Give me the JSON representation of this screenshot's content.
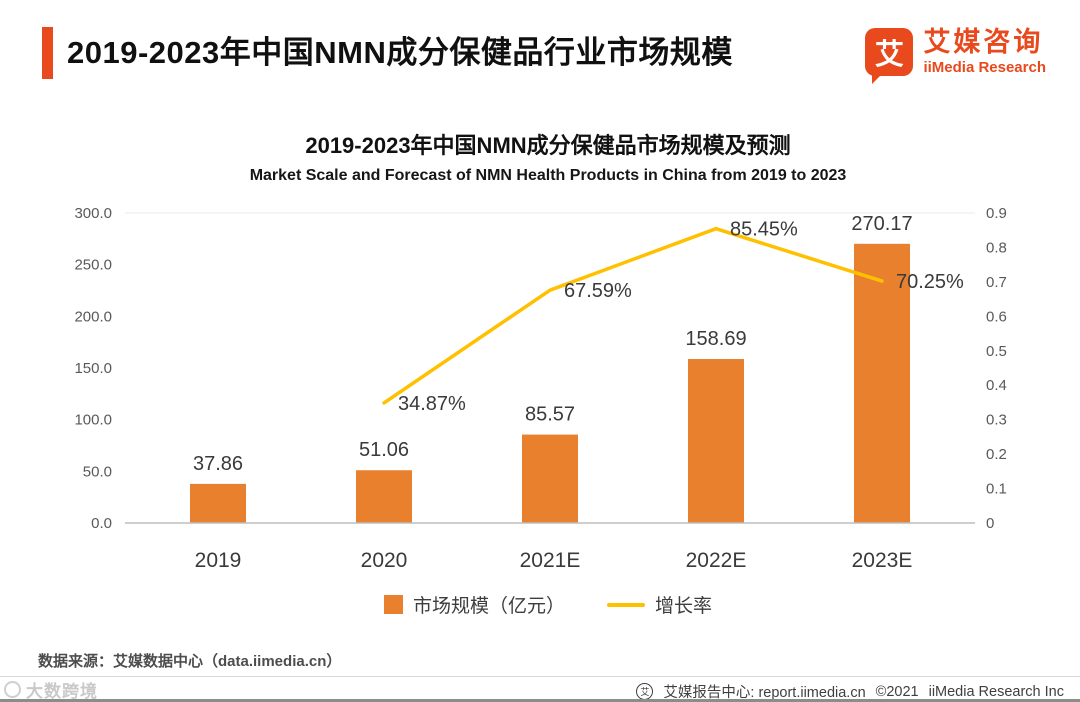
{
  "header": {
    "title": "2019-2023年中国NMN成分保健品行业市场规模",
    "logo": {
      "icon_char": "艾",
      "zh": "艾媒咨询",
      "en": "iiMedia Research"
    }
  },
  "chart": {
    "title_zh": "2019-2023年中国NMN成分保健品市场规模及预测",
    "title_en": "Market Scale and Forecast of NMN Health Products in China from 2019 to 2023"
  },
  "chart_data": {
    "type": "bar+line combo",
    "title": "2019-2023年中国NMN成分保健品市场规模及预测",
    "subtitle": "Market Scale and Forecast of NMN Health Products in China from 2019 to 2023",
    "categories": [
      "2019",
      "2020",
      "2021E",
      "2022E",
      "2023E"
    ],
    "series": [
      {
        "name": "市场规模（亿元）",
        "type": "bar",
        "axis": "left",
        "color": "#E8802E",
        "values": [
          37.86,
          51.06,
          85.57,
          158.69,
          270.17
        ]
      },
      {
        "name": "增长率",
        "type": "line",
        "axis": "right",
        "color": "#FFC000",
        "values": [
          null,
          0.3487,
          0.6759,
          0.8545,
          0.7025
        ],
        "point_labels": [
          "",
          "34.87%",
          "67.59%",
          "85.45%",
          "70.25%"
        ]
      }
    ],
    "left_axis": {
      "min": 0,
      "max": 300,
      "step": 50,
      "ticks": [
        "300.0",
        "250.0",
        "200.0",
        "150.0",
        "100.0",
        "50.0",
        "0.0"
      ]
    },
    "right_axis": {
      "min": 0,
      "max": 0.9,
      "step": 0.1,
      "ticks": [
        "0.9",
        "0.8",
        "0.7",
        "0.6",
        "0.5",
        "0.4",
        "0.3",
        "0.2",
        "0.1",
        "0"
      ]
    },
    "legend_position": "bottom",
    "grid": "top-line-only"
  },
  "footer": {
    "source": "数据来源：艾媒数据中心（data.iimedia.cn）",
    "watermark": "大数跨境",
    "report_icon_char": "艾",
    "report_center": "艾媒报告中心: report.iimedia.cn",
    "copyright": "©2021",
    "company": "iiMedia Research Inc"
  }
}
